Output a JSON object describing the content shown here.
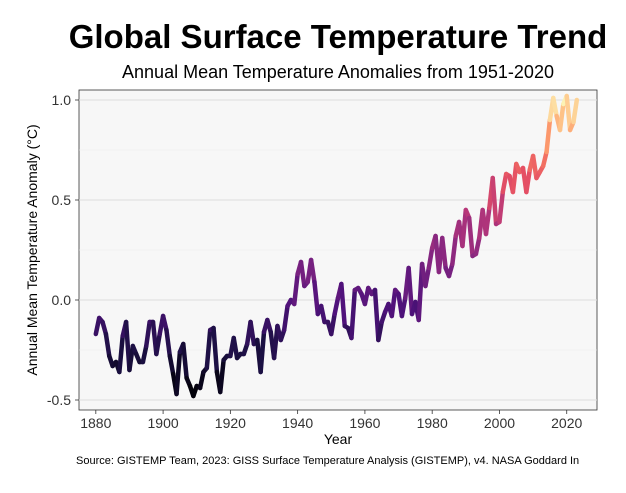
{
  "title": "Global Surface Temperature Trend",
  "subtitle": "Annual Mean Temperature Anomalies from 1951-2020",
  "caption": "Source: GISTEMP Team, 2023: GISS Surface Temperature Analysis (GISTEMP), v4. NASA Goddard In",
  "chart_data": {
    "type": "line",
    "title": "Global Surface Temperature Trend",
    "subtitle": "Annual Mean Temperature Anomalies from 1951-2020",
    "xlabel": "Year",
    "ylabel": "Annual Mean Temperature Anomaly (°C)",
    "xlim": [
      1875,
      2029
    ],
    "ylim": [
      -0.55,
      1.05
    ],
    "xticks": [
      1880,
      1900,
      1920,
      1940,
      1960,
      1980,
      2000,
      2020
    ],
    "xtick_labels": [
      "1880",
      "1900",
      "1920",
      "1940",
      "1960",
      "1980",
      "2000",
      "2020"
    ],
    "yticks": [
      -0.5,
      0.0,
      0.5,
      1.0
    ],
    "ytick_labels": [
      "-0.5",
      "0.0",
      "0.5",
      "1.0"
    ],
    "grid": true,
    "color_scale": "magma",
    "x": [
      1880,
      1881,
      1882,
      1883,
      1884,
      1885,
      1886,
      1887,
      1888,
      1889,
      1890,
      1891,
      1892,
      1893,
      1894,
      1895,
      1896,
      1897,
      1898,
      1899,
      1900,
      1901,
      1902,
      1903,
      1904,
      1905,
      1906,
      1907,
      1908,
      1909,
      1910,
      1911,
      1912,
      1913,
      1914,
      1915,
      1916,
      1917,
      1918,
      1919,
      1920,
      1921,
      1922,
      1923,
      1924,
      1925,
      1926,
      1927,
      1928,
      1929,
      1930,
      1931,
      1932,
      1933,
      1934,
      1935,
      1936,
      1937,
      1938,
      1939,
      1940,
      1941,
      1942,
      1943,
      1944,
      1945,
      1946,
      1947,
      1948,
      1949,
      1950,
      1951,
      1952,
      1953,
      1954,
      1955,
      1956,
      1957,
      1958,
      1959,
      1960,
      1961,
      1962,
      1963,
      1964,
      1965,
      1966,
      1967,
      1968,
      1969,
      1970,
      1971,
      1972,
      1973,
      1974,
      1975,
      1976,
      1977,
      1978,
      1979,
      1980,
      1981,
      1982,
      1983,
      1984,
      1985,
      1986,
      1987,
      1988,
      1989,
      1990,
      1991,
      1992,
      1993,
      1994,
      1995,
      1996,
      1997,
      1998,
      1999,
      2000,
      2001,
      2002,
      2003,
      2004,
      2005,
      2006,
      2007,
      2008,
      2009,
      2010,
      2011,
      2012,
      2013,
      2014,
      2015,
      2016,
      2017,
      2018,
      2019,
      2020,
      2021,
      2022,
      2023
    ],
    "values": [
      -0.17,
      -0.09,
      -0.11,
      -0.17,
      -0.28,
      -0.33,
      -0.31,
      -0.36,
      -0.18,
      -0.11,
      -0.35,
      -0.23,
      -0.27,
      -0.31,
      -0.31,
      -0.23,
      -0.11,
      -0.11,
      -0.27,
      -0.17,
      -0.08,
      -0.15,
      -0.28,
      -0.37,
      -0.47,
      -0.26,
      -0.22,
      -0.39,
      -0.43,
      -0.48,
      -0.43,
      -0.44,
      -0.36,
      -0.34,
      -0.15,
      -0.14,
      -0.36,
      -0.46,
      -0.3,
      -0.28,
      -0.28,
      -0.19,
      -0.29,
      -0.27,
      -0.27,
      -0.22,
      -0.11,
      -0.22,
      -0.2,
      -0.36,
      -0.16,
      -0.1,
      -0.16,
      -0.29,
      -0.13,
      -0.2,
      -0.15,
      -0.03,
      0.0,
      -0.02,
      0.13,
      0.19,
      0.07,
      0.09,
      0.2,
      0.09,
      -0.07,
      -0.03,
      -0.11,
      -0.11,
      -0.17,
      -0.07,
      0.01,
      0.08,
      -0.13,
      -0.14,
      -0.19,
      0.05,
      0.06,
      0.03,
      -0.02,
      0.06,
      0.03,
      0.05,
      -0.2,
      -0.11,
      -0.06,
      -0.02,
      -0.08,
      0.05,
      0.03,
      -0.08,
      0.01,
      0.16,
      -0.07,
      -0.01,
      -0.1,
      0.18,
      0.07,
      0.16,
      0.26,
      0.32,
      0.14,
      0.31,
      0.16,
      0.12,
      0.18,
      0.32,
      0.39,
      0.27,
      0.45,
      0.41,
      0.22,
      0.23,
      0.31,
      0.45,
      0.33,
      0.46,
      0.61,
      0.38,
      0.39,
      0.54,
      0.63,
      0.62,
      0.54,
      0.68,
      0.64,
      0.66,
      0.54,
      0.65,
      0.72,
      0.61,
      0.64,
      0.67,
      0.74,
      0.9,
      1.01,
      0.92,
      0.85,
      0.98,
      1.02,
      0.85,
      0.89,
      1.0
    ]
  }
}
